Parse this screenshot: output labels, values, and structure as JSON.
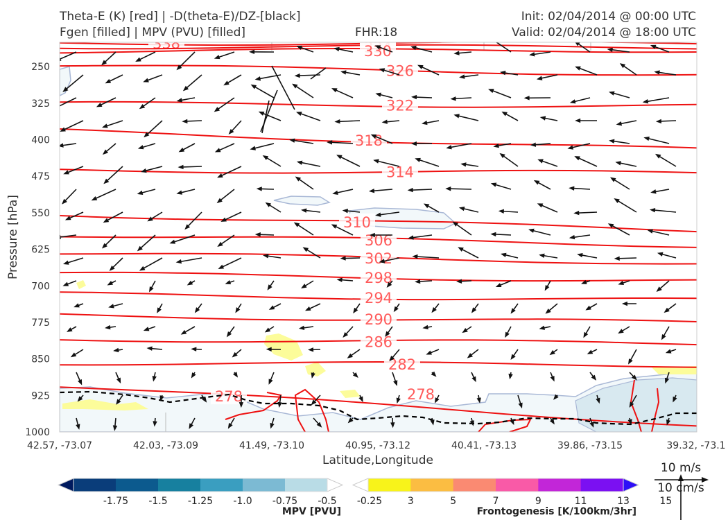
{
  "header": {
    "title_left_1": "Theta-E (K) [red] | -D(theta-E)/DZ-[black]",
    "title_left_2": "Fgen [filled] | MPV (PVU) [filled]",
    "fhr": "FHR:18",
    "init": "Init: 02/04/2014 @ 00:00 UTC",
    "valid": "Valid: 02/04/2014 @ 18:00 UTC"
  },
  "chart_data": {
    "type": "cross-section",
    "xlabel": "Latitude,Longitude",
    "ylabel": "Pressure [hPa]",
    "x_ticks": [
      "42.57, -73.07",
      "42.03, -73.09",
      "41.49, -73.10",
      "40.95, -73.12",
      "40.41, -73.13",
      "39.86, -73.15",
      "39.32, -73.1"
    ],
    "y_ticks": [
      250,
      325,
      400,
      475,
      550,
      625,
      700,
      775,
      850,
      925,
      1000
    ],
    "ylim": [
      1000,
      200
    ],
    "theta_e_contours": [
      {
        "label": "338",
        "p_left": 201,
        "p_right": 203
      },
      {
        "label": "334",
        "p_left": 209,
        "p_right": 210
      },
      {
        "label": "330",
        "p_left": 218,
        "p_right": 216
      },
      {
        "label": "326",
        "p_left": 248,
        "p_right": 266
      },
      {
        "label": "322",
        "p_left": 326,
        "p_right": 331
      },
      {
        "label": "318",
        "p_left": 382,
        "p_right": 421
      },
      {
        "label": "314",
        "p_left": 462,
        "p_right": 469
      },
      {
        "label": "310",
        "p_left": 553,
        "p_right": 586
      },
      {
        "label": "306",
        "p_left": 595,
        "p_right": 617
      },
      {
        "label": "302",
        "p_left": 633,
        "p_right": 653
      },
      {
        "label": "298",
        "p_left": 675,
        "p_right": 690
      },
      {
        "label": "294",
        "p_left": 717,
        "p_right": 730
      },
      {
        "label": "290",
        "p_left": 760,
        "p_right": 776
      },
      {
        "label": "286",
        "p_left": 809,
        "p_right": 819
      },
      {
        "label": "282",
        "p_left": 858,
        "p_right": 863
      },
      {
        "label": "278",
        "p_left": 905,
        "p_right": 985
      }
    ],
    "grid": false
  },
  "mpv_colorbar": {
    "title": "MPV [PVU]",
    "ticks": [
      "-1.75",
      "-1.5",
      "-1.25",
      "-1.0",
      "-0.75",
      "-0.5",
      "-0.25"
    ],
    "colors": [
      "#001a5e",
      "#0a3d7a",
      "#0c5a8e",
      "#17809f",
      "#3a9ec0",
      "#7cbad3",
      "#b9dce6",
      "#ffffff"
    ]
  },
  "fgen_colorbar": {
    "title": "Frontogenesis [K/100km/3hr]",
    "ticks": [
      "3",
      "5",
      "7",
      "9",
      "11",
      "13",
      "15"
    ],
    "colors": [
      "#ffffff",
      "#f8f31a",
      "#fbbd42",
      "#fa8a72",
      "#f95aa7",
      "#c226d8",
      "#7b10f2",
      "#2e0ff7"
    ]
  },
  "reference_vector": {
    "label_1": "10 m/s",
    "label_2": "10 cm/s"
  }
}
